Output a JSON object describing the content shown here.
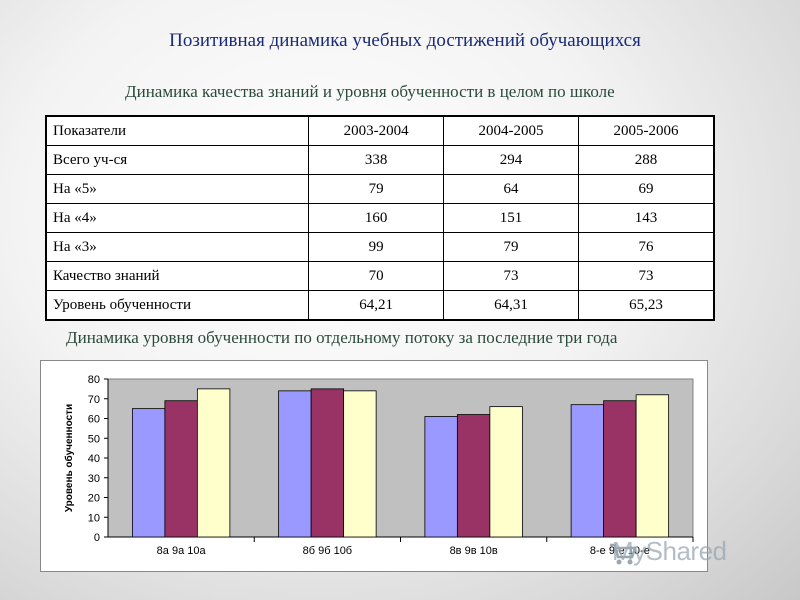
{
  "title": "Позитивная динамика учебных достижений обучающихся",
  "subtitle": "Динамика качества знаний и уровня обученности в целом по школе",
  "table": {
    "headers": [
      "Показатели",
      "2003-2004",
      "2004-2005",
      "2005-2006"
    ],
    "rows": [
      [
        "Всего уч-ся",
        "338",
        "294",
        "288"
      ],
      [
        "На «5»",
        "79",
        "64",
        "69"
      ],
      [
        "На «4»",
        "160",
        "151",
        "143"
      ],
      [
        "На «3»",
        "99",
        "79",
        "76"
      ],
      [
        "Качество знаний",
        "70",
        "73",
        "73"
      ],
      [
        "Уровень обученности",
        "64,21",
        "64,31",
        "65,23"
      ]
    ]
  },
  "subtitle2": "Динамика уровня обученности по отдельному потоку за последние три года",
  "chart_data": {
    "type": "bar",
    "categories": [
      "8а 9а 10а",
      "8б 9б 10б",
      "8в 9в 10в",
      "8-е 9-е 10-е"
    ],
    "series": [
      {
        "values": [
          65,
          74,
          61,
          67
        ],
        "color": "#9999ff"
      },
      {
        "values": [
          69,
          75,
          62,
          69
        ],
        "color": "#993366"
      },
      {
        "values": [
          75,
          74,
          66,
          72
        ],
        "color": "#ffffcc"
      }
    ],
    "ylabel": "Уровень обученности",
    "ylim": [
      0,
      80
    ],
    "yticks": [
      "0",
      "10",
      "20",
      "30",
      "40",
      "50",
      "60",
      "70",
      "80"
    ],
    "grid": false,
    "background": "#c0c0c0"
  },
  "watermark": "MyShared"
}
